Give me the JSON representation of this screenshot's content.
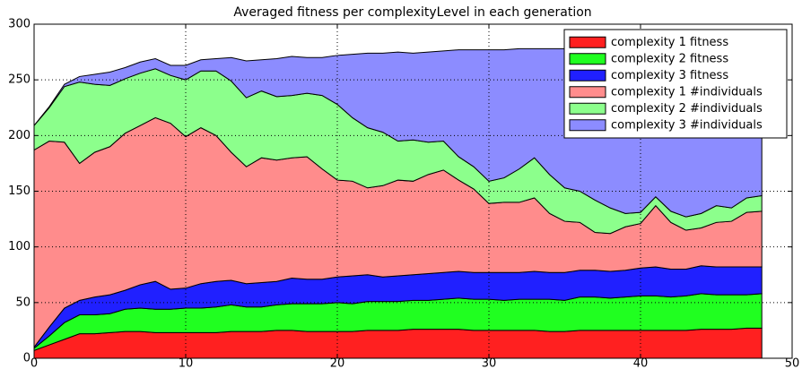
{
  "chart_data": {
    "type": "stacked_area",
    "title": "Averaged fitness per complexityLevel in each generation",
    "x": [
      0,
      1,
      2,
      3,
      4,
      5,
      6,
      7,
      8,
      9,
      10,
      11,
      12,
      13,
      14,
      15,
      16,
      17,
      18,
      19,
      20,
      21,
      22,
      23,
      24,
      25,
      26,
      27,
      28,
      29,
      30,
      31,
      32,
      33,
      34,
      35,
      36,
      37,
      38,
      39,
      40,
      41,
      42,
      43,
      44,
      45,
      46,
      47,
      48
    ],
    "series": [
      {
        "name": "complexity 1 fitness",
        "color": "#ff2020",
        "values": [
          7,
          12,
          17,
          22,
          22,
          23,
          24,
          24,
          23,
          23,
          23,
          23,
          23,
          24,
          24,
          24,
          25,
          25,
          24,
          24,
          24,
          24,
          25,
          25,
          25,
          26,
          26,
          26,
          26,
          25,
          25,
          25,
          25,
          25,
          24,
          24,
          25,
          25,
          25,
          25,
          25,
          25,
          25,
          25,
          26,
          26,
          26,
          27,
          27
        ]
      },
      {
        "name": "complexity 2 fitness",
        "color": "#20ff20",
        "values": [
          2,
          8,
          15,
          17,
          17,
          17,
          20,
          21,
          21,
          21,
          22,
          22,
          23,
          24,
          22,
          22,
          23,
          24,
          25,
          25,
          26,
          25,
          26,
          26,
          26,
          26,
          26,
          27,
          28,
          28,
          28,
          27,
          28,
          28,
          29,
          28,
          30,
          30,
          29,
          30,
          31,
          31,
          30,
          31,
          32,
          31,
          31,
          30,
          31
        ]
      },
      {
        "name": "complexity 3 fitness",
        "color": "#2020ff",
        "values": [
          1,
          8,
          13,
          13,
          16,
          17,
          17,
          21,
          25,
          18,
          18,
          22,
          23,
          22,
          21,
          22,
          21,
          23,
          22,
          22,
          23,
          25,
          24,
          22,
          23,
          23,
          24,
          24,
          24,
          24,
          24,
          25,
          24,
          25,
          24,
          25,
          24,
          24,
          24,
          24,
          25,
          26,
          25,
          24,
          25,
          25,
          25,
          25,
          24
        ]
      },
      {
        "name": "complexity 1 #individuals",
        "color": "#ff8c8c",
        "values": [
          177,
          167,
          149,
          123,
          130,
          133,
          141,
          143,
          147,
          149,
          136,
          140,
          131,
          115,
          105,
          112,
          109,
          108,
          110,
          99,
          87,
          85,
          78,
          82,
          86,
          84,
          89,
          92,
          82,
          75,
          62,
          63,
          63,
          66,
          53,
          46,
          43,
          34,
          34,
          39,
          40,
          55,
          42,
          35,
          34,
          40,
          41,
          49,
          50
        ]
      },
      {
        "name": "complexity 2 #individuals",
        "color": "#8cff8c",
        "values": [
          22,
          30,
          50,
          73,
          61,
          55,
          49,
          47,
          44,
          43,
          51,
          51,
          58,
          64,
          62,
          60,
          57,
          56,
          57,
          66,
          68,
          57,
          54,
          48,
          35,
          37,
          29,
          26,
          21,
          20,
          20,
          22,
          30,
          36,
          35,
          30,
          28,
          29,
          23,
          12,
          10,
          8,
          10,
          12,
          13,
          15,
          12,
          13,
          14
        ]
      },
      {
        "name": "complexity 3 #individuals",
        "color": "#8c8cff",
        "values": [
          0,
          1,
          2,
          5,
          9,
          12,
          10,
          10,
          9,
          9,
          13,
          10,
          11,
          21,
          33,
          28,
          34,
          35,
          32,
          34,
          44,
          57,
          67,
          71,
          80,
          78,
          81,
          81,
          96,
          105,
          118,
          115,
          108,
          98,
          113,
          125,
          127,
          135,
          142,
          147,
          146,
          132,
          145,
          150,
          147,
          140,
          142,
          133,
          131
        ]
      }
    ],
    "xlim": [
      0,
      50
    ],
    "xticks": [
      0,
      10,
      20,
      30,
      40,
      50
    ],
    "ylim": [
      0,
      300
    ],
    "yticks": [
      0,
      50,
      100,
      150,
      200,
      250,
      300
    ],
    "grid": true,
    "legend": "upper right"
  }
}
